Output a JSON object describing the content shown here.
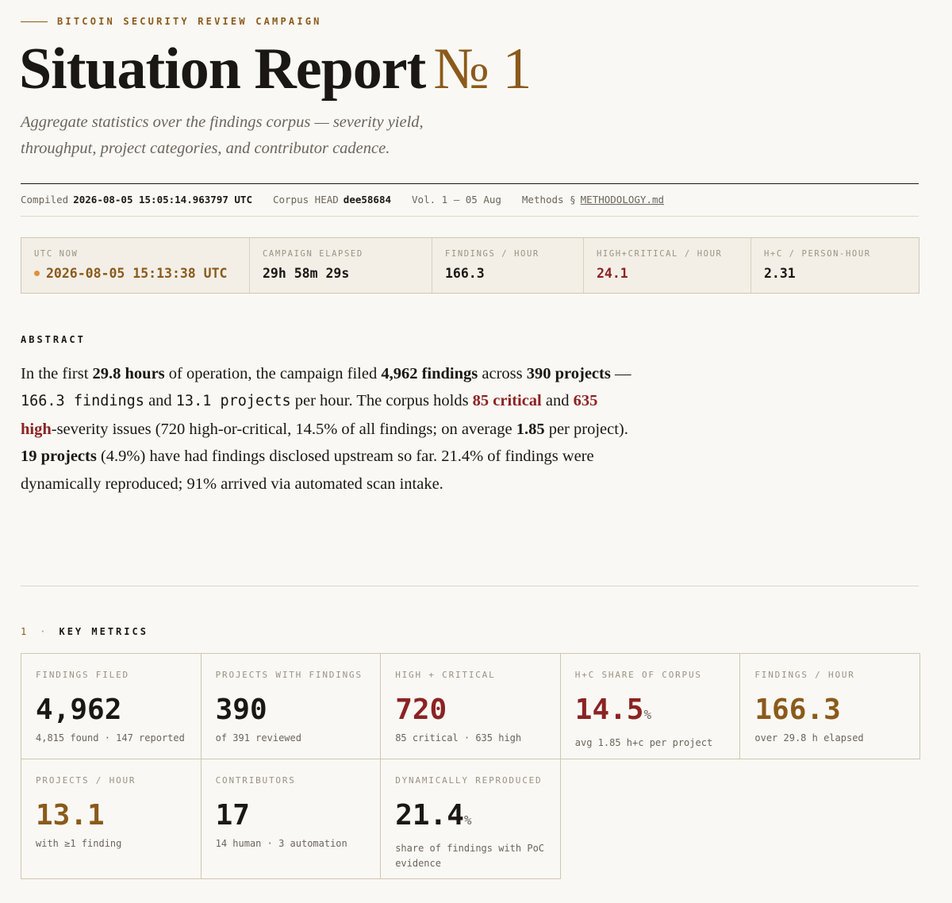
{
  "header": {
    "eyebrow": "BITCOIN SECURITY REVIEW CAMPAIGN",
    "title": "Situation Report",
    "number": "№ 1",
    "subtitle": "Aggregate statistics over the findings corpus — severity yield, throughput, project categories, and contributor cadence."
  },
  "meta": {
    "compiled_label": "Compiled",
    "compiled_value": "2026-08-05 15:05:14.963797 UTC",
    "corpus_label": "Corpus HEAD",
    "corpus_value": "dee58684",
    "volume": "Vol. 1 — 05 Aug",
    "methods_label": "Methods §",
    "methods_link": "METHODOLOGY.md"
  },
  "status": [
    {
      "label": "UTC NOW",
      "value": "2026-08-05 15:13:38 UTC",
      "color": "#8b5a1b"
    },
    {
      "label": "CAMPAIGN ELAPSED",
      "value": "29h 58m 29s",
      "color": "#1a1714"
    },
    {
      "label": "FINDINGS / HOUR",
      "value": "166.3",
      "color": "#1a1714"
    },
    {
      "label": "HIGH+CRITICAL / HOUR",
      "value": "24.1",
      "color": "#8b2323"
    },
    {
      "label": "H+C / PERSON-HOUR",
      "value": "2.31",
      "color": "#1a1714"
    }
  ],
  "abstract": {
    "heading": "ABSTRACT",
    "segments": [
      "In the first ",
      "29.8 hours",
      " of operation, the campaign filed ",
      "4,962 findings",
      " across ",
      "390 projects",
      " — ",
      "166.3 findings",
      " and ",
      "13.1 projects",
      " per hour. The corpus holds ",
      "85 critical",
      " and ",
      "635 high",
      "-severity issues (720 high-or-critical, 14.5% of all findings; on average ",
      "1.85",
      " per project). ",
      "19 projects",
      " (4.9%) have had findings disclosed upstream so far. 21.4% of findings were dynamically reproduced; 91% arrived via automated scan intake."
    ]
  },
  "section": {
    "number": "1",
    "separator": "·",
    "title": "KEY METRICS"
  },
  "metrics": [
    {
      "label": "FINDINGS FILED",
      "value": "4,962",
      "sub": "4,815 found · 147 reported",
      "color": "#1a1714"
    },
    {
      "label": "PROJECTS WITH FINDINGS",
      "value": "390",
      "sub": "of 391 reviewed",
      "color": "#1a1714"
    },
    {
      "label": "HIGH + CRITICAL",
      "value": "720",
      "sub": "85 critical · 635 high",
      "color": "#8b2323"
    },
    {
      "label": "H+C SHARE OF CORPUS",
      "value": "14.5",
      "unit": "%",
      "sub": "avg 1.85 h+c per project",
      "color": "#8b2323"
    },
    {
      "label": "FINDINGS / HOUR",
      "value": "166.3",
      "sub": "over 29.8 h elapsed",
      "color": "#8b5a1b"
    },
    {
      "label": "PROJECTS / HOUR",
      "value": "13.1",
      "sub": "with ≥1 finding",
      "color": "#8b5a1b"
    },
    {
      "label": "CONTRIBUTORS",
      "value": "17",
      "sub": "14 human · 3 automation",
      "color": "#1a1714"
    },
    {
      "label": "DYNAMICALLY REPRODUCED",
      "value": "21.4",
      "unit": "%",
      "sub": "share of findings with PoC evidence",
      "color": "#1a1714"
    }
  ]
}
